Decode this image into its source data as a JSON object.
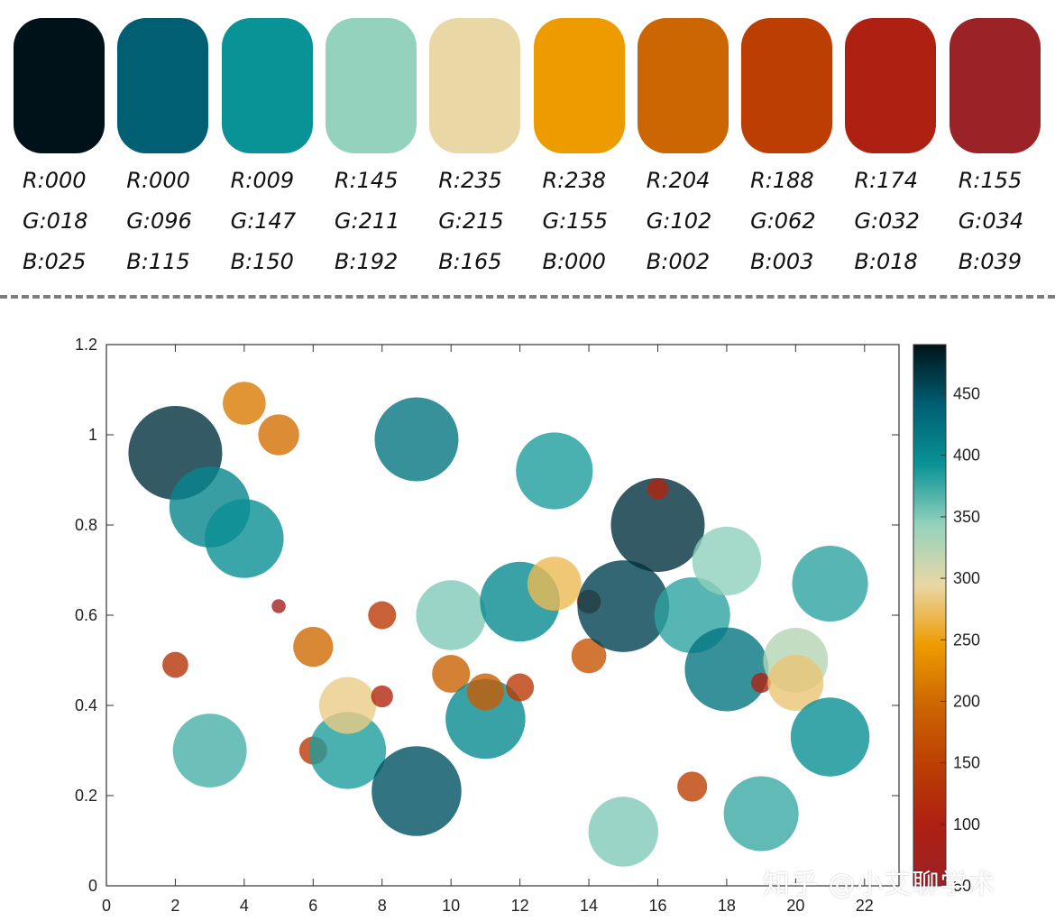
{
  "palette": [
    {
      "r": "R:000",
      "g": "G:018",
      "b": "B:025",
      "color": "#001219"
    },
    {
      "r": "R:000",
      "g": "G:096",
      "b": "B:115",
      "color": "#005f73"
    },
    {
      "r": "R:009",
      "g": "G:147",
      "b": "B:150",
      "color": "#0a9396"
    },
    {
      "r": "R:145",
      "g": "G:211",
      "b": "B:192",
      "color": "#94d2bd"
    },
    {
      "r": "R:235",
      "g": "G:215",
      "b": "B:165",
      "color": "#e9d8a6"
    },
    {
      "r": "R:238",
      "g": "G:155",
      "b": "B:000",
      "color": "#ee9b00"
    },
    {
      "r": "R:204",
      "g": "G:102",
      "b": "B:002",
      "color": "#cc6602"
    },
    {
      "r": "R:188",
      "g": "G:062",
      "b": "B:003",
      "color": "#bc3e03"
    },
    {
      "r": "R:174",
      "g": "G:032",
      "b": "B:018",
      "color": "#ae2012"
    },
    {
      "r": "R:155",
      "g": "G:034",
      "b": "B:039",
      "color": "#9b2227"
    }
  ],
  "watermark": "知乎 @小艾聊学术",
  "chart_data": {
    "type": "scatter",
    "xlim": [
      0,
      23
    ],
    "ylim": [
      0,
      1.2
    ],
    "xticks": [
      "0",
      "2",
      "4",
      "6",
      "8",
      "10",
      "12",
      "14",
      "16",
      "18",
      "20",
      "22"
    ],
    "yticks": [
      "0",
      "0.2",
      "0.4",
      "0.6",
      "0.8",
      "1",
      "1.2"
    ],
    "colorbar": {
      "min": 50,
      "max": 490,
      "ticks": [
        "50",
        "100",
        "150",
        "200",
        "250",
        "300",
        "350",
        "400",
        "450"
      ]
    },
    "grid": false,
    "points": [
      {
        "x": 2,
        "y": 0.96,
        "size": 470
      },
      {
        "x": 3,
        "y": 0.84,
        "size": 405
      },
      {
        "x": 4,
        "y": 0.77,
        "size": 395
      },
      {
        "x": 4,
        "y": 1.07,
        "size": 215
      },
      {
        "x": 5,
        "y": 1.0,
        "size": 205
      },
      {
        "x": 2,
        "y": 0.49,
        "size": 130
      },
      {
        "x": 3,
        "y": 0.3,
        "size": 370
      },
      {
        "x": 5,
        "y": 0.62,
        "size": 70
      },
      {
        "x": 6,
        "y": 0.53,
        "size": 200
      },
      {
        "x": 6,
        "y": 0.3,
        "size": 140
      },
      {
        "x": 7,
        "y": 0.3,
        "size": 385
      },
      {
        "x": 7,
        "y": 0.4,
        "size": 285
      },
      {
        "x": 8,
        "y": 0.6,
        "size": 140
      },
      {
        "x": 8,
        "y": 0.42,
        "size": 110
      },
      {
        "x": 9,
        "y": 0.99,
        "size": 420
      },
      {
        "x": 9,
        "y": 0.21,
        "size": 450
      },
      {
        "x": 10,
        "y": 0.6,
        "size": 350
      },
      {
        "x": 10,
        "y": 0.47,
        "size": 190
      },
      {
        "x": 11,
        "y": 0.37,
        "size": 400
      },
      {
        "x": 11,
        "y": 0.43,
        "size": 185
      },
      {
        "x": 12,
        "y": 0.63,
        "size": 400
      },
      {
        "x": 12,
        "y": 0.44,
        "size": 140
      },
      {
        "x": 13,
        "y": 0.92,
        "size": 385
      },
      {
        "x": 13,
        "y": 0.67,
        "size": 270
      },
      {
        "x": 14,
        "y": 0.63,
        "size": 120
      },
      {
        "x": 14,
        "y": 0.51,
        "size": 175
      },
      {
        "x": 15,
        "y": 0.62,
        "size": 460
      },
      {
        "x": 15,
        "y": 0.12,
        "size": 350
      },
      {
        "x": 16,
        "y": 0.8,
        "size": 470
      },
      {
        "x": 16,
        "y": 0.88,
        "size": 105
      },
      {
        "x": 17,
        "y": 0.6,
        "size": 380
      },
      {
        "x": 17,
        "y": 0.22,
        "size": 150
      },
      {
        "x": 18,
        "y": 0.72,
        "size": 345
      },
      {
        "x": 18,
        "y": 0.48,
        "size": 420
      },
      {
        "x": 19,
        "y": 0.45,
        "size": 100
      },
      {
        "x": 19,
        "y": 0.16,
        "size": 375
      },
      {
        "x": 20,
        "y": 0.5,
        "size": 325
      },
      {
        "x": 20,
        "y": 0.45,
        "size": 280
      },
      {
        "x": 21,
        "y": 0.67,
        "size": 380
      },
      {
        "x": 21,
        "y": 0.33,
        "size": 395
      }
    ]
  }
}
